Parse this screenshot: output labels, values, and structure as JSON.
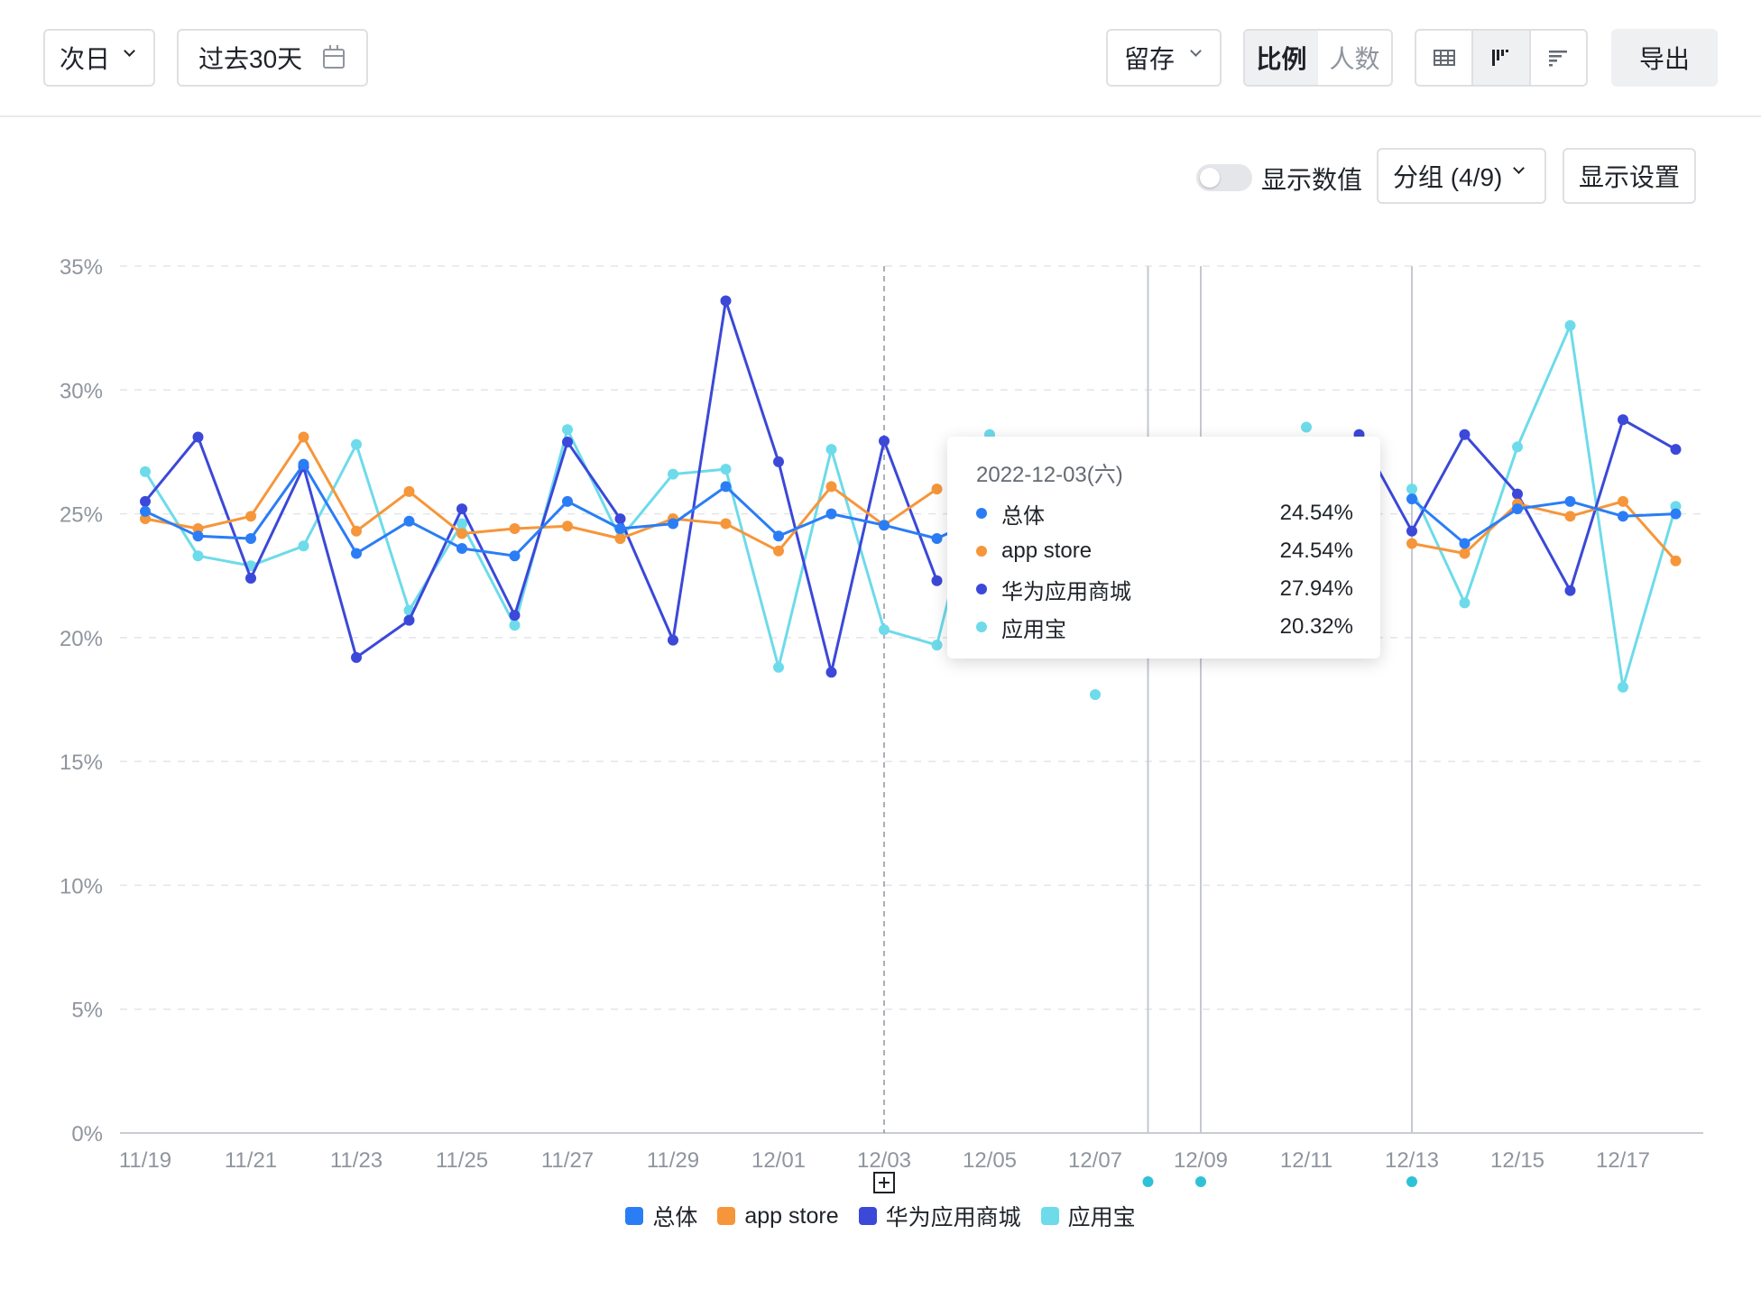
{
  "toolbar": {
    "period": "次日",
    "date_range": "过去30天",
    "metric": "留存",
    "mode_ratio": "比例",
    "mode_count": "人数",
    "export": "导出"
  },
  "controls": {
    "show_values": "显示数值",
    "group": "分组 (4/9)",
    "display_settings": "显示设置"
  },
  "tooltip": {
    "date": "2022-12-03(六)",
    "rows": [
      {
        "name": "总体",
        "value": "24.54%"
      },
      {
        "name": "app store",
        "value": "24.54%"
      },
      {
        "name": "华为应用商城",
        "value": "27.94%"
      },
      {
        "name": "应用宝",
        "value": "20.32%"
      }
    ]
  },
  "colors": {
    "总体": "#2b7df5",
    "app store": "#f6963a",
    "华为应用商城": "#3b48d8",
    "应用宝": "#6ddbea",
    "marker": "#2fc2d6"
  },
  "chart_data": {
    "type": "line",
    "x": [
      "11/19",
      "11/20",
      "11/21",
      "11/22",
      "11/23",
      "11/24",
      "11/25",
      "11/26",
      "11/27",
      "11/28",
      "11/29",
      "11/30",
      "12/01",
      "12/02",
      "12/03",
      "12/04",
      "12/05",
      "12/06",
      "12/07",
      "12/08",
      "12/09",
      "12/10",
      "12/11",
      "12/12",
      "12/13",
      "12/14",
      "12/15",
      "12/16",
      "12/17",
      "12/18"
    ],
    "x_tick_labels": [
      "11/19",
      "11/21",
      "11/23",
      "11/25",
      "11/27",
      "11/29",
      "12/01",
      "12/03",
      "12/05",
      "12/07",
      "12/09",
      "12/11",
      "12/13",
      "12/15",
      "12/17"
    ],
    "y_tick_labels": [
      "0%",
      "5%",
      "10%",
      "15%",
      "20%",
      "25%",
      "30%",
      "35%"
    ],
    "ylim": [
      0,
      35
    ],
    "y_unit": "%",
    "grid": true,
    "legend_position": "bottom",
    "series": [
      {
        "name": "总体",
        "values": [
          25.1,
          24.1,
          24.0,
          27.0,
          23.4,
          24.7,
          23.6,
          23.3,
          25.5,
          24.4,
          24.6,
          26.1,
          24.1,
          25.0,
          24.54,
          24.0,
          25.0,
          null,
          null,
          null,
          null,
          null,
          null,
          null,
          25.6,
          23.8,
          25.2,
          25.5,
          24.9,
          25.0
        ]
      },
      {
        "name": "app store",
        "values": [
          24.8,
          24.4,
          24.9,
          28.1,
          24.3,
          25.9,
          24.2,
          24.4,
          24.5,
          24.0,
          24.8,
          24.6,
          23.5,
          26.1,
          24.54,
          26.0,
          null,
          null,
          null,
          null,
          null,
          null,
          null,
          null,
          23.8,
          23.4,
          25.4,
          24.9,
          25.5,
          23.1
        ]
      },
      {
        "name": "华为应用商城",
        "values": [
          25.5,
          28.1,
          22.4,
          26.9,
          19.2,
          20.7,
          25.2,
          20.9,
          27.9,
          24.8,
          19.9,
          33.6,
          27.1,
          18.6,
          27.94,
          22.3,
          null,
          null,
          null,
          null,
          null,
          null,
          null,
          28.2,
          24.3,
          28.2,
          25.8,
          21.9,
          28.8,
          27.6
        ]
      },
      {
        "name": "应用宝",
        "values": [
          26.7,
          23.3,
          22.9,
          23.7,
          27.8,
          21.1,
          24.6,
          20.5,
          28.4,
          24.0,
          26.6,
          26.8,
          18.8,
          27.6,
          20.32,
          19.7,
          28.2,
          null,
          17.7,
          null,
          null,
          null,
          28.5,
          null,
          26.0,
          21.4,
          27.7,
          32.6,
          18.0,
          25.3
        ]
      }
    ],
    "reference_lines": [
      "12/08",
      "12/09",
      "12/13"
    ],
    "highlight_x": "12/03"
  }
}
